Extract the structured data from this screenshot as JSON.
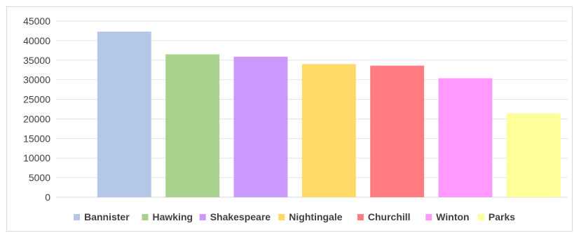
{
  "chart_data": {
    "type": "bar",
    "title": "",
    "xlabel": "",
    "ylabel": "",
    "ylim": [
      0,
      45000
    ],
    "yticks": [
      0,
      5000,
      10000,
      15000,
      20000,
      25000,
      30000,
      35000,
      40000,
      45000
    ],
    "grid": true,
    "legend_position": "bottom",
    "categories": [
      "Bannister",
      "Hawking",
      "Shakespeare",
      "Nightingale",
      "Churchill",
      "Winton",
      "Parks"
    ],
    "values": [
      42300,
      36500,
      35900,
      34000,
      33600,
      30400,
      21400
    ],
    "colors": [
      "#b4c7e7",
      "#a9d18e",
      "#cc99ff",
      "#ffd966",
      "#ff7c80",
      "#ff99ff",
      "#ffff99"
    ]
  }
}
